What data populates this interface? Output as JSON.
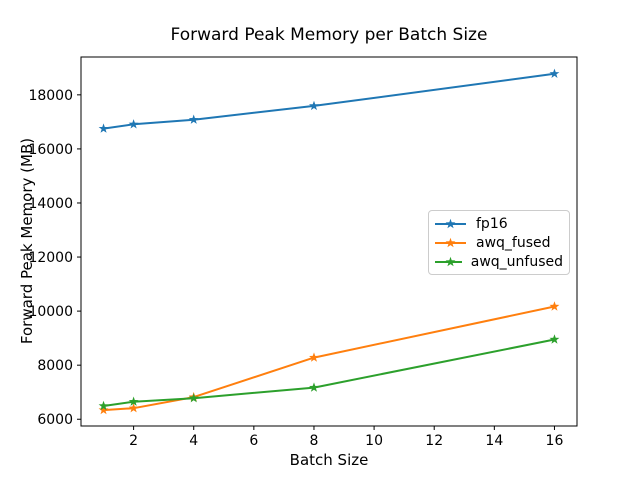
{
  "chart_data": {
    "type": "line",
    "title": "Forward Peak Memory per Batch Size",
    "xlabel": "Batch Size",
    "ylabel": "Forward Peak Memory (MB)",
    "x": [
      1,
      2,
      4,
      8,
      16
    ],
    "series": [
      {
        "name": "fp16",
        "color": "#1f77b4",
        "values": [
          16750,
          16910,
          17080,
          17590,
          18780
        ]
      },
      {
        "name": "awq_fused",
        "color": "#ff7f0e",
        "values": [
          6340,
          6410,
          6820,
          8280,
          10170
        ]
      },
      {
        "name": "awq_unfused",
        "color": "#2ca02c",
        "values": [
          6490,
          6650,
          6780,
          7170,
          8950
        ]
      }
    ],
    "xticks": [
      2,
      4,
      6,
      8,
      10,
      12,
      14,
      16
    ],
    "yticks": [
      6000,
      8000,
      10000,
      12000,
      14000,
      16000,
      18000
    ],
    "xlim": [
      0.25,
      16.75
    ],
    "ylim": [
      5750,
      19400
    ],
    "marker": "star",
    "grid": false,
    "legend_position": "center-right",
    "axis_color": "#000000",
    "background_color": "#ffffff"
  }
}
